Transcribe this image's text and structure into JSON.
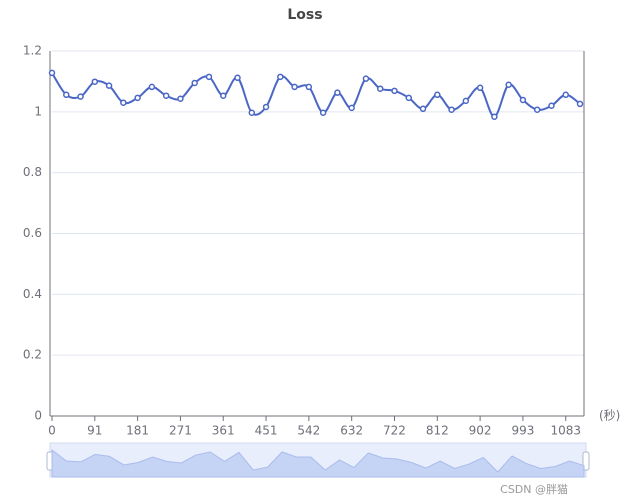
{
  "chart_data": {
    "type": "line",
    "title": "Loss",
    "x_axis_label": "(秒)",
    "categories": [
      "0",
      null,
      null,
      "91",
      null,
      null,
      "181",
      null,
      null,
      "271",
      null,
      null,
      "361",
      null,
      null,
      "451",
      null,
      null,
      "542",
      null,
      null,
      "632",
      null,
      null,
      "722",
      null,
      null,
      "812",
      null,
      null,
      "902",
      null,
      null,
      "993",
      null,
      null,
      "1083",
      null
    ],
    "series": [
      {
        "name": "Loss",
        "color": "#4b67c6",
        "values": [
          1.128,
          1.056,
          1.05,
          1.099,
          1.086,
          1.03,
          1.046,
          1.082,
          1.053,
          1.043,
          1.095,
          1.115,
          1.053,
          1.112,
          0.997,
          1.016,
          1.115,
          1.082,
          1.082,
          0.997,
          1.063,
          1.013,
          1.109,
          1.076,
          1.069,
          1.046,
          1.01,
          1.056,
          1.007,
          1.036,
          1.079,
          0.984,
          1.089,
          1.039,
          1.007,
          1.02,
          1.056,
          1.026
        ]
      }
    ],
    "ylim": [
      0,
      1.2
    ],
    "yticks": [
      0,
      0.2,
      0.4,
      0.6,
      0.8,
      1,
      1.2
    ],
    "grid": true,
    "smooth": true,
    "watermark": "CSDN @胖猫"
  }
}
